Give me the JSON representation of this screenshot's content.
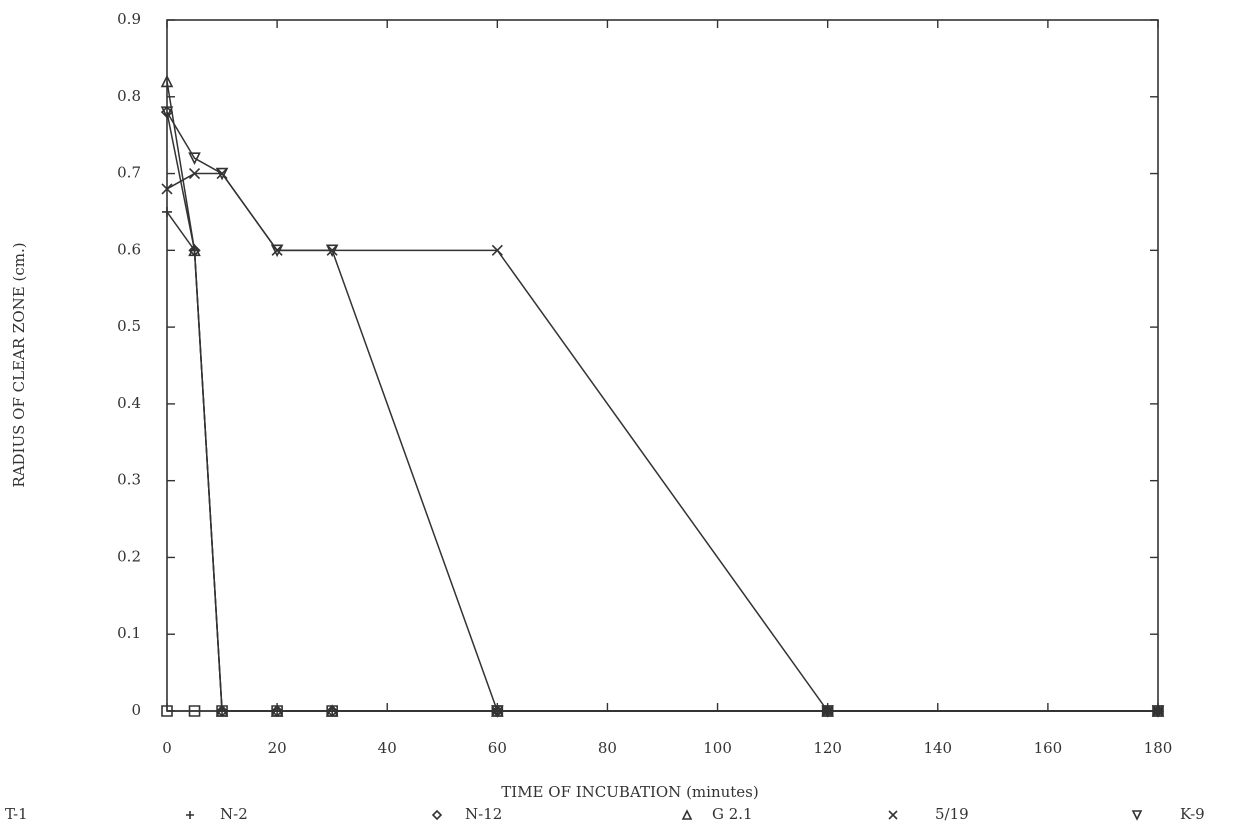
{
  "chart_data": {
    "type": "line",
    "x_label": "TIME OF INCUBATION (minutes)",
    "y_label": "RADIUS OF CLEAR ZONE (cm.)",
    "x": [
      0,
      5,
      10,
      20,
      30,
      60,
      120,
      180
    ],
    "series": [
      {
        "name": "T-1",
        "color": "#333333",
        "marker": "square",
        "values": [
          0,
          0,
          0,
          0,
          0,
          0,
          0,
          0
        ]
      },
      {
        "name": "N-2",
        "color": "#333333",
        "marker": "plus",
        "values": [
          0.65,
          0.6,
          0,
          0,
          0,
          0,
          0,
          0
        ]
      },
      {
        "name": "N-12",
        "color": "#333333",
        "marker": "diamond",
        "values": [
          0.78,
          0.6,
          0,
          0,
          0,
          0,
          0,
          0
        ]
      },
      {
        "name": "G 2.1",
        "color": "#333333",
        "marker": "triangle-up",
        "values": [
          0.82,
          0.6,
          0,
          0,
          0,
          0,
          0,
          0
        ]
      },
      {
        "name": "5/19",
        "color": "#333333",
        "marker": "cross",
        "values": [
          0.68,
          0.7,
          0.7,
          0.6,
          0.6,
          0.6,
          0,
          0
        ]
      },
      {
        "name": "K-9",
        "color": "#333333",
        "marker": "triangle-down",
        "values": [
          0.78,
          0.72,
          0.7,
          0.6,
          0.6,
          0,
          0,
          0
        ]
      }
    ],
    "xlim": [
      0,
      180
    ],
    "xticks": [
      0,
      20,
      40,
      60,
      80,
      100,
      120,
      140,
      160,
      180
    ],
    "ylim": [
      0,
      0.9
    ],
    "yticks": [
      0,
      0.1,
      0.2,
      0.3,
      0.4,
      0.5,
      0.6,
      0.7,
      0.8,
      0.9
    ],
    "grid": false
  }
}
